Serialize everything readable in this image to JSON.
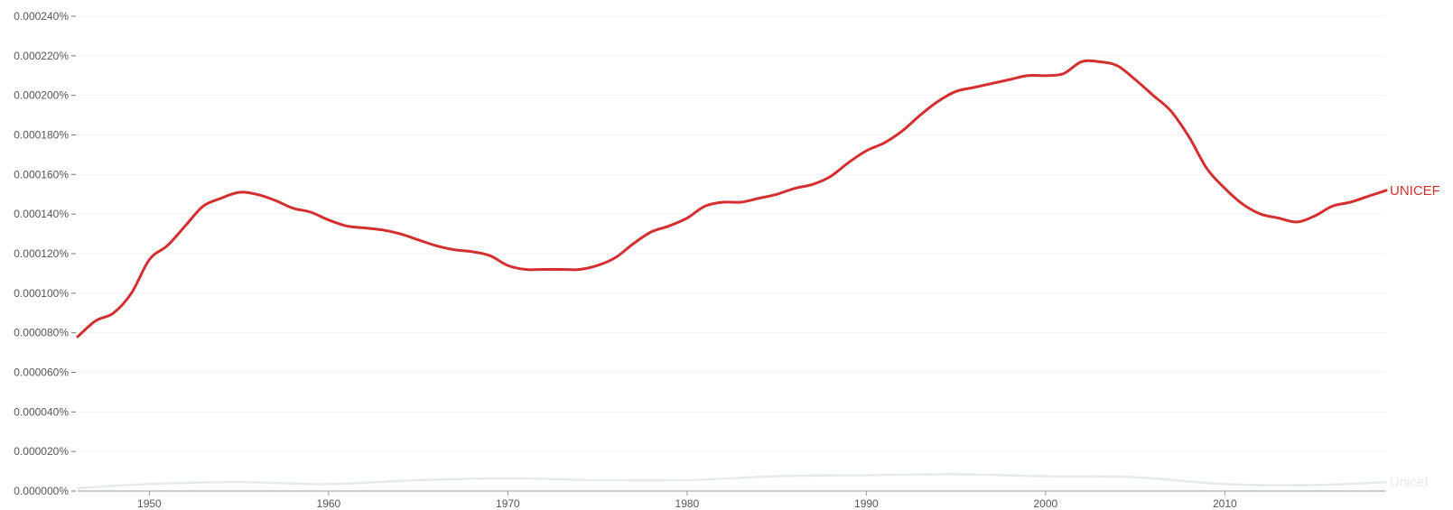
{
  "chart_data": {
    "type": "line",
    "title": "",
    "xlabel": "",
    "ylabel": "",
    "xlim": [
      1946,
      2019
    ],
    "ylim": [
      0,
      0.00024
    ],
    "x_ticks": [
      1950,
      1960,
      1970,
      1980,
      1990,
      2000,
      2010
    ],
    "x_tick_labels": [
      "1950",
      "1960",
      "1970",
      "1980",
      "1990",
      "2000",
      "2010"
    ],
    "y_ticks": [
      0,
      2e-05,
      4e-05,
      6e-05,
      8e-05,
      0.0001,
      0.00012,
      0.00014,
      0.00016,
      0.00018,
      0.0002,
      0.00022,
      0.00024
    ],
    "y_tick_labels": [
      "0.000000%",
      "0.000020%",
      "0.000040%",
      "0.000060%",
      "0.000080%",
      "0.000100%",
      "0.000120%",
      "0.000140%",
      "0.000160%",
      "0.000180%",
      "0.000200%",
      "0.000220%",
      "0.000240%"
    ],
    "grid": "horizontal",
    "legend": "labels at right end of lines",
    "series": [
      {
        "name": "UNICEF",
        "color": "#d32f2f",
        "x": [
          1946,
          1947,
          1948,
          1949,
          1950,
          1951,
          1952,
          1953,
          1954,
          1955,
          1956,
          1957,
          1958,
          1959,
          1960,
          1961,
          1962,
          1963,
          1964,
          1965,
          1966,
          1967,
          1968,
          1969,
          1970,
          1971,
          1972,
          1973,
          1974,
          1975,
          1976,
          1977,
          1978,
          1979,
          1980,
          1981,
          1982,
          1983,
          1984,
          1985,
          1986,
          1987,
          1988,
          1989,
          1990,
          1991,
          1992,
          1993,
          1994,
          1995,
          1996,
          1997,
          1998,
          1999,
          2000,
          2001,
          2002,
          2003,
          2004,
          2005,
          2006,
          2007,
          2008,
          2009,
          2010,
          2011,
          2012,
          2013,
          2014,
          2015,
          2016,
          2017,
          2018,
          2019
        ],
        "values": [
          7.8e-05,
          8.6e-05,
          9e-05,
          0.0001,
          0.000117,
          0.000124,
          0.000134,
          0.000144,
          0.000148,
          0.000151,
          0.00015,
          0.000147,
          0.000143,
          0.000141,
          0.000137,
          0.000134,
          0.000133,
          0.000132,
          0.00013,
          0.000127,
          0.000124,
          0.000122,
          0.000121,
          0.000119,
          0.000114,
          0.000112,
          0.000112,
          0.000112,
          0.000112,
          0.000114,
          0.000118,
          0.000125,
          0.000131,
          0.000134,
          0.000138,
          0.000144,
          0.000146,
          0.000146,
          0.000148,
          0.00015,
          0.000153,
          0.000155,
          0.000159,
          0.000166,
          0.000172,
          0.000176,
          0.000182,
          0.00019,
          0.000197,
          0.000202,
          0.000204,
          0.000206,
          0.000208,
          0.00021,
          0.00021,
          0.000211,
          0.000217,
          0.000217,
          0.000215,
          0.000208,
          0.0002,
          0.000192,
          0.000179,
          0.000163,
          0.000153,
          0.000145,
          0.00014,
          0.000138,
          0.000136,
          0.000139,
          0.000144,
          0.000146,
          0.000149,
          0.000152
        ]
      },
      {
        "name": "Unicef",
        "color": "#e4ecea",
        "x": [
          1946,
          1950,
          1955,
          1960,
          1965,
          1970,
          1975,
          1980,
          1985,
          1990,
          1995,
          2000,
          2005,
          2010,
          2015,
          2019
        ],
        "values": [
          1.5e-06,
          3.5e-06,
          4.5e-06,
          3.5e-06,
          5.5e-06,
          6.5e-06,
          5.5e-06,
          5.5e-06,
          7.5e-06,
          8e-06,
          8.5e-06,
          7.5e-06,
          7e-06,
          3.5e-06,
          3e-06,
          4.5e-06
        ]
      }
    ]
  }
}
